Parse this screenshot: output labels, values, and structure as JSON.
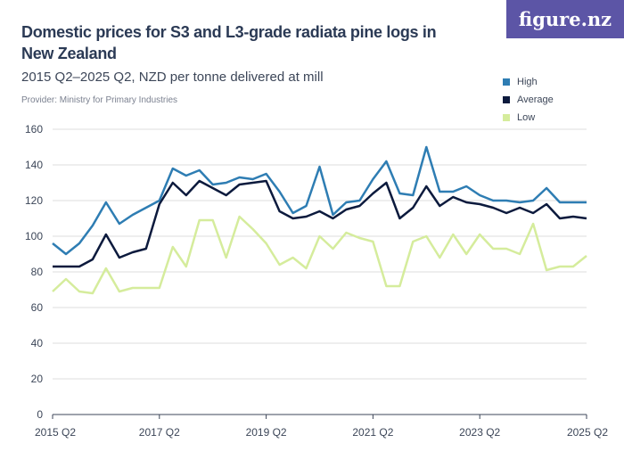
{
  "header": {
    "title": "Domestic prices for S3 and L3-grade radiata pine logs in New Zealand",
    "subtitle": "2015 Q2–2025 Q2, NZD per tonne delivered at mill",
    "provider": "Provider: Ministry for Primary Industries",
    "logo": "figure.nz"
  },
  "colors": {
    "High": "#2e7db3",
    "Average": "#0c1a3d",
    "Low": "#d5ec9c",
    "logo_bg": "#5c55a6"
  },
  "chart_data": {
    "type": "line",
    "title": "Domestic prices for S3 and L3-grade radiata pine logs in New Zealand",
    "subtitle": "2015 Q2–2025 Q2, NZD per tonne delivered at mill",
    "x_start": "2015 Q2",
    "x_end": "2025 Q2",
    "frequency": "quarterly",
    "x_ticks": [
      "2015 Q2",
      "2017 Q2",
      "2019 Q2",
      "2021 Q2",
      "2023 Q2",
      "2025 Q2"
    ],
    "y_ticks": [
      0,
      20,
      40,
      60,
      80,
      100,
      120,
      140,
      160
    ],
    "ylim": [
      0,
      160
    ],
    "grid": true,
    "legend": "top-right",
    "series": [
      {
        "name": "High",
        "values": [
          96,
          90,
          96,
          106,
          119,
          107,
          112,
          116,
          120,
          138,
          134,
          137,
          129,
          130,
          133,
          132,
          135,
          125,
          113,
          117,
          139,
          112,
          119,
          120,
          132,
          142,
          124,
          123,
          150,
          125,
          125,
          128,
          123,
          120,
          120,
          119,
          120,
          127,
          119,
          119,
          119
        ]
      },
      {
        "name": "Average",
        "values": [
          83,
          83,
          83,
          87,
          101,
          88,
          91,
          93,
          118,
          130,
          123,
          131,
          127,
          123,
          129,
          130,
          131,
          114,
          110,
          111,
          114,
          110,
          115,
          117,
          124,
          130,
          110,
          116,
          128,
          117,
          122,
          119,
          118,
          116,
          113,
          116,
          113,
          118,
          110,
          111,
          110
        ]
      },
      {
        "name": "Low",
        "values": [
          69,
          76,
          69,
          68,
          82,
          69,
          71,
          71,
          71,
          94,
          83,
          109,
          109,
          88,
          111,
          104,
          96,
          84,
          88,
          82,
          100,
          93,
          102,
          99,
          97,
          72,
          72,
          97,
          100,
          88,
          101,
          90,
          101,
          93,
          93,
          90,
          107,
          81,
          83,
          83,
          89
        ]
      }
    ]
  }
}
